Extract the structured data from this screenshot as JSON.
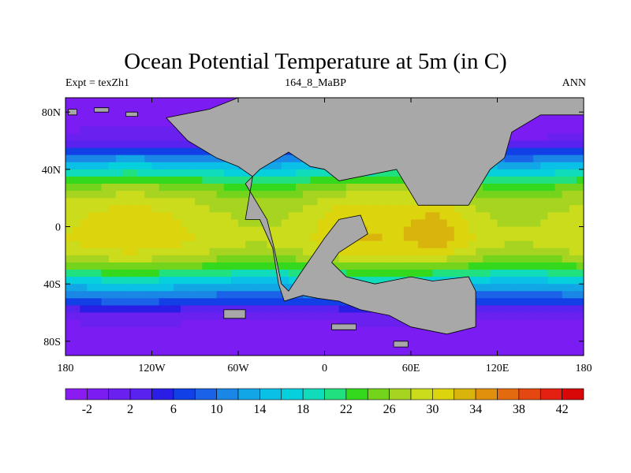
{
  "chart_data": {
    "type": "heatmap",
    "title": "Ocean Potential Temperature at 5m (in C)",
    "left_label": "Expt = texZh1",
    "center_label": "164_8_MaBP",
    "right_label": "ANN",
    "x_range": [
      -180,
      180
    ],
    "y_range": [
      -90,
      90
    ],
    "x_ticks": [
      {
        "value": -180,
        "label": "180"
      },
      {
        "value": -120,
        "label": "120W"
      },
      {
        "value": -60,
        "label": "60W"
      },
      {
        "value": 0,
        "label": "0"
      },
      {
        "value": 60,
        "label": "60E"
      },
      {
        "value": 120,
        "label": "120E"
      },
      {
        "value": 180,
        "label": "180"
      }
    ],
    "y_ticks": [
      {
        "value": 80,
        "label": "80N"
      },
      {
        "value": 40,
        "label": "40N"
      },
      {
        "value": 0,
        "label": "0"
      },
      {
        "value": -40,
        "label": "40S"
      },
      {
        "value": -80,
        "label": "80S"
      }
    ],
    "colorbar": {
      "levels": [
        -4,
        -2,
        0,
        2,
        4,
        6,
        8,
        10,
        12,
        14,
        16,
        18,
        20,
        22,
        24,
        26,
        28,
        30,
        32,
        34,
        36,
        38,
        40,
        42,
        44
      ],
      "tick_labels": [
        "-2",
        "2",
        "6",
        "10",
        "14",
        "18",
        "22",
        "26",
        "30",
        "34",
        "38",
        "42"
      ],
      "colors": [
        "#8a1cf2",
        "#7b1cf2",
        "#6a20ef",
        "#5a22ee",
        "#2a1ee6",
        "#1040e6",
        "#1a62e8",
        "#1a86e6",
        "#12a6e6",
        "#0ac0e6",
        "#06d0dc",
        "#10dcbc",
        "#20e080",
        "#34d81c",
        "#74d41c",
        "#a6d420",
        "#cadc1c",
        "#dcd40c",
        "#d8b40c",
        "#e0900c",
        "#e46a10",
        "#e44810",
        "#e42010",
        "#d80808"
      ]
    },
    "land_color": "#a8a8a8",
    "temperature_profile": [
      {
        "lat": 90,
        "temp": -2
      },
      {
        "lat": 75,
        "temp": -1.5
      },
      {
        "lat": 60,
        "temp": 1
      },
      {
        "lat": 50,
        "temp": 9
      },
      {
        "lat": 40,
        "temp": 17
      },
      {
        "lat": 30,
        "temp": 24
      },
      {
        "lat": 20,
        "temp": 27.5
      },
      {
        "lat": 10,
        "temp": 29
      },
      {
        "lat": 0,
        "temp": 29.5
      },
      {
        "lat": -10,
        "temp": 30
      },
      {
        "lat": -20,
        "temp": 28
      },
      {
        "lat": -30,
        "temp": 23
      },
      {
        "lat": -40,
        "temp": 15
      },
      {
        "lat": -50,
        "temp": 9
      },
      {
        "lat": -60,
        "temp": 2
      },
      {
        "lat": -70,
        "temp": -1
      },
      {
        "lat": -90,
        "temp": -2
      }
    ],
    "hotspots": [
      {
        "lon": 80,
        "lat": -3,
        "radius": 20,
        "delta": 3
      },
      {
        "lon": 15,
        "lat": 0,
        "radius": 25,
        "delta": 1.5
      }
    ],
    "land_polygons": [
      [
        [
          -60,
          90
        ],
        [
          180,
          90
        ],
        [
          180,
          78
        ],
        [
          150,
          78
        ],
        [
          130,
          66
        ],
        [
          125,
          48
        ],
        [
          115,
          40
        ],
        [
          100,
          15
        ],
        [
          65,
          15
        ],
        [
          50,
          40
        ],
        [
          10,
          32
        ],
        [
          0,
          40
        ],
        [
          -10,
          42
        ],
        [
          -25,
          52
        ],
        [
          -45,
          40
        ],
        [
          -55,
          30
        ],
        [
          -40,
          5
        ],
        [
          -35,
          -15
        ],
        [
          -30,
          -40
        ],
        [
          -25,
          -45
        ],
        [
          -15,
          -30
        ],
        [
          0,
          -8
        ],
        [
          10,
          5
        ],
        [
          25,
          8
        ],
        [
          30,
          -5
        ],
        [
          10,
          -18
        ],
        [
          5,
          -25
        ],
        [
          15,
          -35
        ],
        [
          35,
          -40
        ],
        [
          60,
          -35
        ],
        [
          75,
          -38
        ],
        [
          100,
          -35
        ],
        [
          105,
          -45
        ],
        [
          105,
          -70
        ],
        [
          85,
          -75
        ],
        [
          60,
          -70
        ],
        [
          45,
          -62
        ],
        [
          25,
          -58
        ],
        [
          10,
          -52
        ],
        [
          -5,
          -50
        ],
        [
          -15,
          -48
        ],
        [
          -28,
          -52
        ],
        [
          -32,
          -40
        ],
        [
          -36,
          -15
        ],
        [
          -45,
          5
        ],
        [
          -55,
          5
        ],
        [
          -50,
          35
        ],
        [
          -60,
          42
        ],
        [
          -75,
          48
        ],
        [
          -95,
          60
        ],
        [
          -110,
          76
        ],
        [
          -80,
          82
        ]
      ],
      [
        [
          -178,
          82
        ],
        [
          -172,
          82
        ],
        [
          -172,
          78
        ],
        [
          -178,
          78
        ]
      ],
      [
        [
          -160,
          83
        ],
        [
          -150,
          83
        ],
        [
          -150,
          80
        ],
        [
          -160,
          80
        ]
      ],
      [
        [
          -138,
          80
        ],
        [
          -130,
          80
        ],
        [
          -130,
          77
        ],
        [
          -138,
          77
        ]
      ],
      [
        [
          -70,
          -64
        ],
        [
          -55,
          -64
        ],
        [
          -55,
          -58
        ],
        [
          -70,
          -58
        ]
      ],
      [
        [
          5,
          -72
        ],
        [
          22,
          -72
        ],
        [
          22,
          -68
        ],
        [
          5,
          -68
        ]
      ],
      [
        [
          48,
          -84
        ],
        [
          58,
          -84
        ],
        [
          58,
          -80
        ],
        [
          48,
          -80
        ]
      ]
    ]
  }
}
